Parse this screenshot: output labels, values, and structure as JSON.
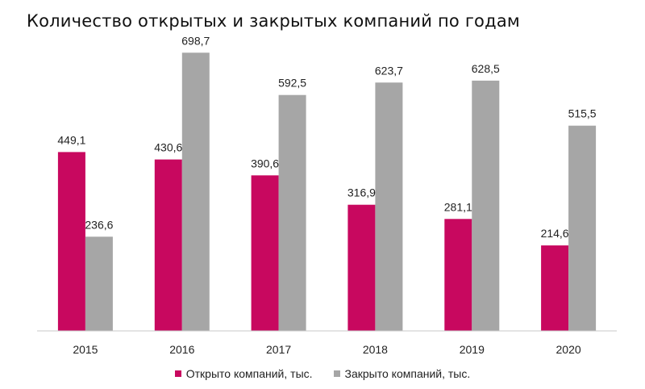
{
  "title": "Количество открытых и закрытых компаний по годам",
  "chart_data": {
    "type": "bar",
    "title": "Количество открытых и закрытых компаний по годам",
    "categories": [
      "2015",
      "2016",
      "2017",
      "2018",
      "2019",
      "2020"
    ],
    "series": [
      {
        "name": "Открыто компаний, тыс.",
        "color": "#C8085F",
        "values": [
          449.1,
          430.6,
          390.6,
          316.9,
          281.1,
          214.6
        ],
        "labels": [
          "449,1",
          "430,6",
          "390,6",
          "316,9",
          "281,1",
          "214,6"
        ]
      },
      {
        "name": "Закрыто компаний, тыс.",
        "color": "#A6A6A6",
        "values": [
          236.6,
          698.7,
          592.5,
          623.7,
          628.5,
          515.5
        ],
        "labels": [
          "236,6",
          "698,7",
          "592,5",
          "623,7",
          "628,5",
          "515,5"
        ]
      }
    ],
    "xlabel": "",
    "ylabel": "",
    "ylim": [
      0,
      750
    ],
    "grid": false,
    "legend_position": "bottom"
  }
}
